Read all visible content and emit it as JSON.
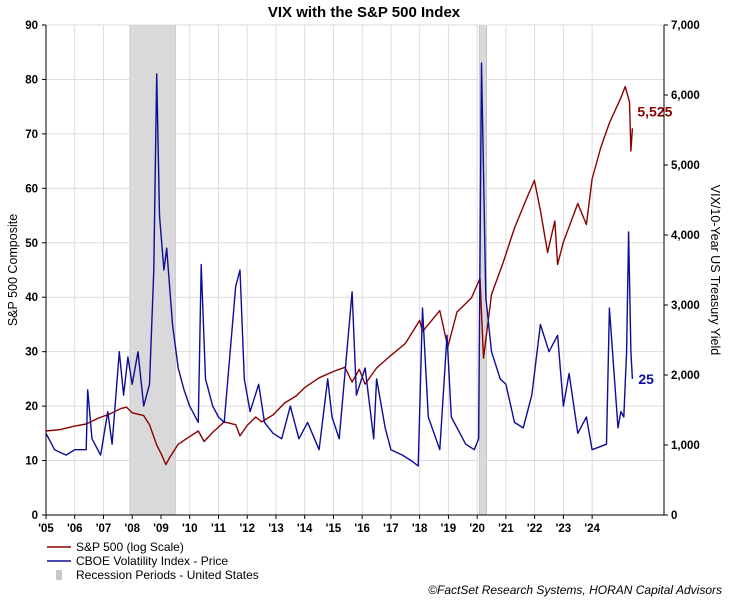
{
  "chart_data": {
    "type": "line",
    "title": "VIX with the S&P 500 Index",
    "ylabel_left": "S&P 500 Composite",
    "ylabel_right": "VIX/10-Year US Treasury Yield",
    "x_tick_labels": [
      "'05",
      "'06",
      "'07",
      "'08",
      "'09",
      "'10",
      "'11",
      "'12",
      "'13",
      "'14",
      "'15",
      "'16",
      "'17",
      "'18",
      "'19",
      "'20",
      "'21",
      "'22",
      "'23",
      "'24"
    ],
    "x_range": [
      2005.0,
      2026.5
    ],
    "left_axis": {
      "range": [
        0,
        90
      ],
      "ticks": [
        0,
        10,
        20,
        30,
        40,
        50,
        60,
        70,
        80,
        90
      ]
    },
    "right_axis": {
      "range": [
        0,
        7000
      ],
      "ticks": [
        "0",
        "1,000",
        "2,000",
        "3,000",
        "4,000",
        "5,000",
        "6,000",
        "7,000"
      ]
    },
    "grid": true,
    "legend_position": "bottom-left",
    "recessions": [
      [
        2007.92,
        2009.5
      ],
      [
        2020.08,
        2020.33
      ]
    ],
    "series": [
      {
        "name": "S&P 500 (log Scale)",
        "axis": "right",
        "color": "#8b0000",
        "end_label": "5,525",
        "points": [
          [
            2005.0,
            1200
          ],
          [
            2005.5,
            1220
          ],
          [
            2006.0,
            1270
          ],
          [
            2006.4,
            1300
          ],
          [
            2006.8,
            1380
          ],
          [
            2007.2,
            1440
          ],
          [
            2007.6,
            1520
          ],
          [
            2007.8,
            1540
          ],
          [
            2008.0,
            1460
          ],
          [
            2008.4,
            1420
          ],
          [
            2008.6,
            1290
          ],
          [
            2008.85,
            1000
          ],
          [
            2009.0,
            880
          ],
          [
            2009.17,
            720
          ],
          [
            2009.3,
            820
          ],
          [
            2009.6,
            1010
          ],
          [
            2010.0,
            1120
          ],
          [
            2010.3,
            1200
          ],
          [
            2010.5,
            1050
          ],
          [
            2010.8,
            1180
          ],
          [
            2011.2,
            1330
          ],
          [
            2011.6,
            1290
          ],
          [
            2011.75,
            1130
          ],
          [
            2012.0,
            1280
          ],
          [
            2012.3,
            1400
          ],
          [
            2012.5,
            1330
          ],
          [
            2012.9,
            1430
          ],
          [
            2013.3,
            1600
          ],
          [
            2013.7,
            1700
          ],
          [
            2014.0,
            1820
          ],
          [
            2014.5,
            1960
          ],
          [
            2015.0,
            2050
          ],
          [
            2015.4,
            2110
          ],
          [
            2015.65,
            1900
          ],
          [
            2015.9,
            2080
          ],
          [
            2016.1,
            1870
          ],
          [
            2016.5,
            2100
          ],
          [
            2017.0,
            2280
          ],
          [
            2017.5,
            2450
          ],
          [
            2018.0,
            2780
          ],
          [
            2018.1,
            2620
          ],
          [
            2018.7,
            2920
          ],
          [
            2018.98,
            2400
          ],
          [
            2019.3,
            2900
          ],
          [
            2019.8,
            3100
          ],
          [
            2020.1,
            3380
          ],
          [
            2020.22,
            2240
          ],
          [
            2020.5,
            3150
          ],
          [
            2020.9,
            3600
          ],
          [
            2021.3,
            4100
          ],
          [
            2021.7,
            4500
          ],
          [
            2021.99,
            4780
          ],
          [
            2022.2,
            4350
          ],
          [
            2022.45,
            3750
          ],
          [
            2022.7,
            4200
          ],
          [
            2022.8,
            3580
          ],
          [
            2023.0,
            3900
          ],
          [
            2023.5,
            4450
          ],
          [
            2023.8,
            4150
          ],
          [
            2024.0,
            4800
          ],
          [
            2024.3,
            5250
          ],
          [
            2024.6,
            5600
          ],
          [
            2025.0,
            5960
          ],
          [
            2025.15,
            6120
          ],
          [
            2025.3,
            5900
          ],
          [
            2025.35,
            5200
          ],
          [
            2025.4,
            5525
          ]
        ]
      },
      {
        "name": "CBOE Volatility Index - Price",
        "axis": "left",
        "color": "#0d0d99",
        "end_label": "25",
        "points": [
          [
            2005.0,
            15
          ],
          [
            2005.3,
            12
          ],
          [
            2005.7,
            11
          ],
          [
            2006.0,
            12
          ],
          [
            2006.4,
            12
          ],
          [
            2006.45,
            23
          ],
          [
            2006.6,
            14
          ],
          [
            2006.9,
            11
          ],
          [
            2007.15,
            19
          ],
          [
            2007.3,
            13
          ],
          [
            2007.55,
            30
          ],
          [
            2007.7,
            22
          ],
          [
            2007.85,
            29
          ],
          [
            2008.0,
            24
          ],
          [
            2008.2,
            30
          ],
          [
            2008.4,
            20
          ],
          [
            2008.6,
            24
          ],
          [
            2008.75,
            45
          ],
          [
            2008.85,
            81
          ],
          [
            2008.95,
            55
          ],
          [
            2009.1,
            45
          ],
          [
            2009.2,
            49
          ],
          [
            2009.4,
            35
          ],
          [
            2009.6,
            27
          ],
          [
            2009.8,
            23
          ],
          [
            2010.0,
            20
          ],
          [
            2010.3,
            17
          ],
          [
            2010.4,
            46
          ],
          [
            2010.55,
            25
          ],
          [
            2010.8,
            20
          ],
          [
            2011.0,
            18
          ],
          [
            2011.2,
            17
          ],
          [
            2011.6,
            42
          ],
          [
            2011.75,
            45
          ],
          [
            2011.9,
            25
          ],
          [
            2012.1,
            19
          ],
          [
            2012.4,
            24
          ],
          [
            2012.6,
            17
          ],
          [
            2012.9,
            15
          ],
          [
            2013.2,
            14
          ],
          [
            2013.5,
            20
          ],
          [
            2013.8,
            14
          ],
          [
            2014.1,
            17
          ],
          [
            2014.5,
            12
          ],
          [
            2014.8,
            25
          ],
          [
            2014.95,
            18
          ],
          [
            2015.2,
            14
          ],
          [
            2015.65,
            41
          ],
          [
            2015.8,
            22
          ],
          [
            2016.1,
            27
          ],
          [
            2016.4,
            14
          ],
          [
            2016.5,
            25
          ],
          [
            2016.8,
            16
          ],
          [
            2017.0,
            12
          ],
          [
            2017.4,
            11
          ],
          [
            2017.7,
            10
          ],
          [
            2017.95,
            9
          ],
          [
            2018.1,
            38
          ],
          [
            2018.3,
            18
          ],
          [
            2018.7,
            12
          ],
          [
            2018.95,
            33
          ],
          [
            2019.1,
            18
          ],
          [
            2019.6,
            13
          ],
          [
            2019.9,
            12
          ],
          [
            2020.05,
            14
          ],
          [
            2020.15,
            83
          ],
          [
            2020.3,
            40
          ],
          [
            2020.5,
            30
          ],
          [
            2020.8,
            25
          ],
          [
            2021.0,
            24
          ],
          [
            2021.3,
            17
          ],
          [
            2021.6,
            16
          ],
          [
            2021.9,
            22
          ],
          [
            2022.2,
            35
          ],
          [
            2022.5,
            30
          ],
          [
            2022.8,
            33
          ],
          [
            2023.0,
            20
          ],
          [
            2023.2,
            26
          ],
          [
            2023.5,
            15
          ],
          [
            2023.8,
            18
          ],
          [
            2024.0,
            12
          ],
          [
            2024.5,
            13
          ],
          [
            2024.6,
            38
          ],
          [
            2024.9,
            16
          ],
          [
            2025.0,
            19
          ],
          [
            2025.1,
            18
          ],
          [
            2025.2,
            30
          ],
          [
            2025.27,
            52
          ],
          [
            2025.35,
            30
          ],
          [
            2025.4,
            25
          ]
        ]
      }
    ],
    "legend": [
      {
        "label": "S&P 500 (log Scale)",
        "kind": "line",
        "color": "#8b0000"
      },
      {
        "label": "CBOE Volatility Index - Price",
        "kind": "line",
        "color": "#0d0d99"
      },
      {
        "label": "Recession Periods - United States",
        "kind": "box",
        "color": "#c8c8c8"
      }
    ],
    "source": "©FactSet Research Systems, HORAN Capital Advisors"
  }
}
